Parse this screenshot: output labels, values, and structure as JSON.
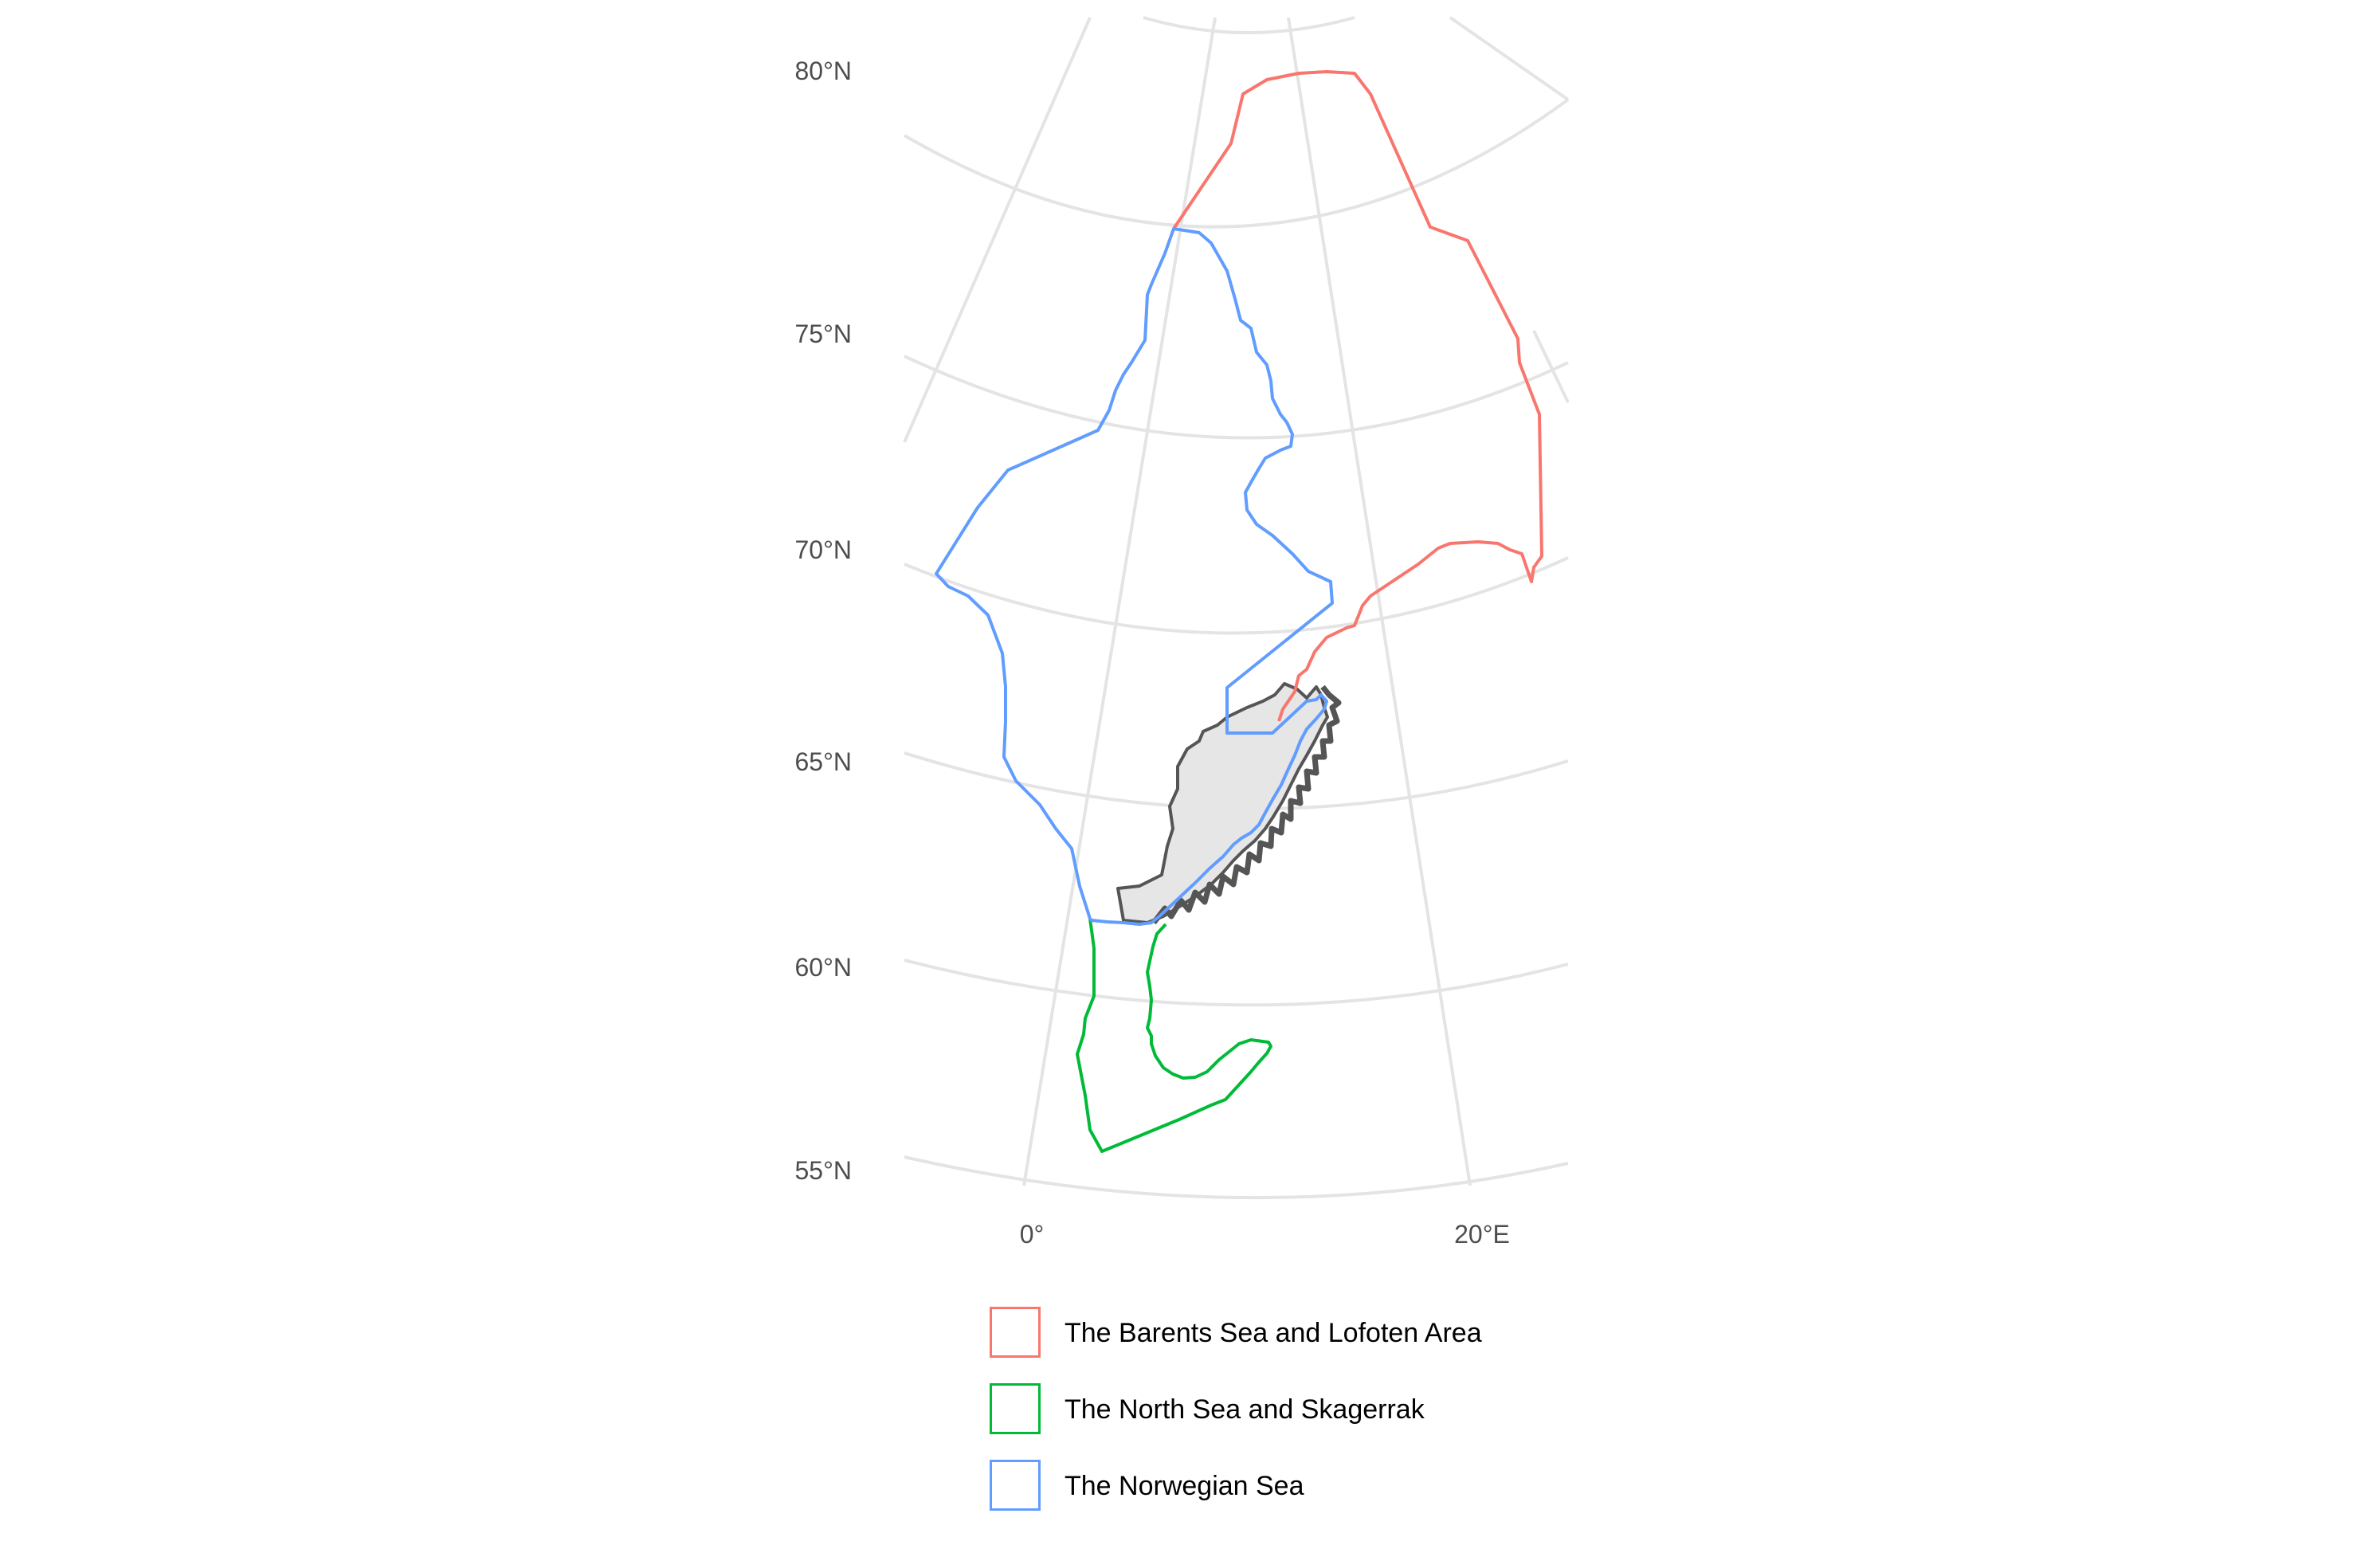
{
  "map": {
    "lat_labels": [
      "80°N",
      "75°N",
      "70°N",
      "65°N",
      "60°N",
      "55°N"
    ],
    "lon_labels": [
      "0°",
      "20°E"
    ],
    "colors": {
      "barents": "#F8766D",
      "north_sea": "#00BA38",
      "norwegian_sea": "#619CFF",
      "land_fill": "#e6e6e6",
      "land_outline": "#555555",
      "graticule": "#e4e4e4"
    },
    "legend": [
      {
        "label": "The Barents Sea and Lofoten Area",
        "color": "#F8766D"
      },
      {
        "label": "The North Sea and Skagerrak",
        "color": "#00BA38"
      },
      {
        "label": "The Norwegian Sea",
        "color": "#619CFF"
      }
    ]
  }
}
